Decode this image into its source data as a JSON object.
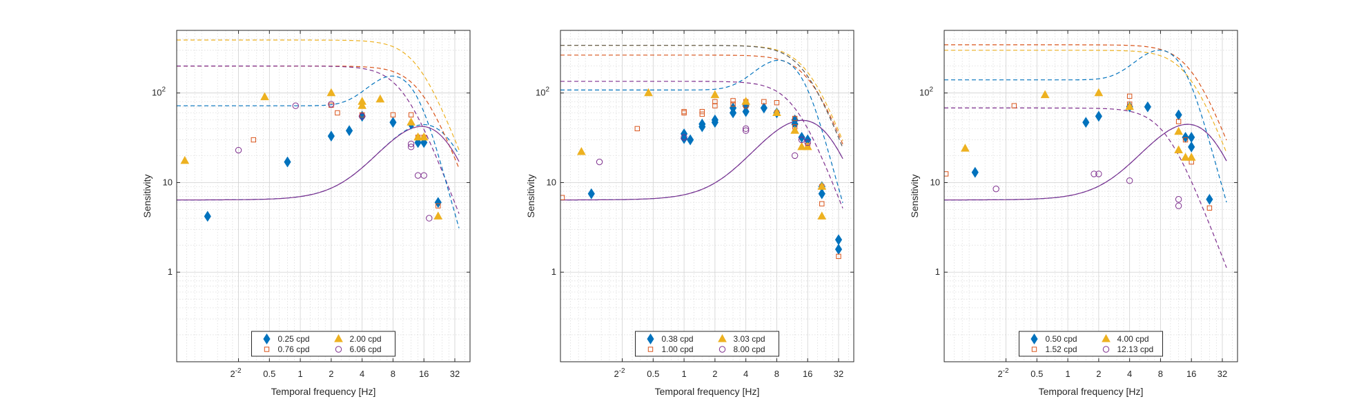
{
  "colors": {
    "blue": "#0072BD",
    "orange": "#D95319",
    "yellow": "#EDB120",
    "purple": "#7E2F8E",
    "grid": "#dcdcdc",
    "axis": "#262626"
  },
  "chart_data": [
    {
      "type": "scatter",
      "xscale": "log2",
      "yscale": "log10",
      "xlim": [
        0.0625,
        45
      ],
      "ylim": [
        0.1,
        500
      ],
      "xticks": [
        "2^-2",
        "0.5",
        "1",
        "2",
        "4",
        "8",
        "16",
        "32"
      ],
      "yticks": [
        "1",
        "10",
        "10^2"
      ],
      "xlabel": "Temporal frequency [Hz]",
      "ylabel": "Sensitivity",
      "legend": {
        "position": "bottom",
        "columns": 2
      },
      "series": [
        {
          "name": "0.25 cpd",
          "marker": "diamond",
          "color": "#0072BD",
          "points": [
            [
              0.125,
              4.2
            ],
            [
              0.75,
              17
            ],
            [
              2,
              33
            ],
            [
              3,
              38
            ],
            [
              4,
              55
            ],
            [
              8,
              47
            ],
            [
              12,
              45
            ],
            [
              14,
              28
            ],
            [
              16,
              28
            ],
            [
              22,
              6
            ]
          ],
          "model": "band",
          "model_params": {
            "base": 6.4,
            "peak": 62,
            "fp": 11,
            "cut": 26
          }
        },
        {
          "name": "0.76 cpd",
          "marker": "square",
          "color": "#D95319",
          "points": [
            [
              0.35,
              30
            ],
            [
              2,
              73
            ],
            [
              2.3,
              60
            ],
            [
              4,
              57
            ],
            [
              8,
              57
            ],
            [
              12,
              57
            ],
            [
              14,
              32
            ],
            [
              16,
              32
            ],
            [
              22,
              5.5
            ]
          ],
          "model": "flat",
          "model_params": {
            "plateau": 200,
            "fc": 15
          }
        },
        {
          "name": "2.00 cpd",
          "marker": "triangle",
          "color": "#EDB120",
          "points": [
            [
              0.075,
              17.5
            ],
            [
              0.45,
              90
            ],
            [
              2,
              100
            ],
            [
              4,
              80
            ],
            [
              4,
              72
            ],
            [
              6,
              85
            ],
            [
              12,
              47
            ],
            [
              14,
              32
            ],
            [
              16,
              32
            ],
            [
              22,
              4.2
            ]
          ],
          "model": "flat",
          "model_params": {
            "plateau": 390,
            "fc": 14
          }
        },
        {
          "name": "6.06 cpd",
          "marker": "circle",
          "color": "#7E2F8E",
          "points": [
            [
              0.25,
              23
            ],
            [
              0.9,
              72
            ],
            [
              2,
              75
            ],
            [
              4,
              55
            ],
            [
              12,
              27
            ],
            [
              12,
              25
            ],
            [
              14,
              12
            ],
            [
              16,
              12
            ],
            [
              18,
              4
            ]
          ],
          "model": "flat",
          "model_params": {
            "plateau": 200,
            "fc": 10
          }
        }
      ],
      "extra_curves": [
        {
          "color": "#0072BD",
          "style": "dashed",
          "model": "hump",
          "model_params": {
            "plateau": 72,
            "fc": 16
          }
        },
        {
          "color": "#7E2F8E",
          "style": "solid",
          "model": "band",
          "model_params": {
            "base": 6.4,
            "peak": 62,
            "fp": 11,
            "cut": 24
          }
        }
      ]
    },
    {
      "type": "scatter",
      "xscale": "log2",
      "yscale": "log10",
      "xlim": [
        0.0625,
        45
      ],
      "ylim": [
        0.1,
        500
      ],
      "xticks": [
        "2^-2",
        "0.5",
        "1",
        "2",
        "4",
        "8",
        "16",
        "32"
      ],
      "yticks": [
        "1",
        "10",
        "10^2"
      ],
      "xlabel": "Temporal frequency [Hz]",
      "ylabel": "Sensitivity",
      "legend": {
        "position": "bottom",
        "columns": 2
      },
      "series": [
        {
          "name": "0.38 cpd",
          "marker": "diamond",
          "color": "#0072BD",
          "points": [
            [
              0.125,
              7.5
            ],
            [
              1,
              35
            ],
            [
              1,
              31
            ],
            [
              1.15,
              30
            ],
            [
              1.5,
              45
            ],
            [
              1.5,
              42
            ],
            [
              2,
              50
            ],
            [
              2,
              47
            ],
            [
              3,
              68
            ],
            [
              3,
              60
            ],
            [
              4,
              72
            ],
            [
              4,
              62
            ],
            [
              6,
              68
            ],
            [
              8,
              60
            ],
            [
              12,
              50
            ],
            [
              12,
              45
            ],
            [
              14,
              32
            ],
            [
              16,
              30
            ],
            [
              22,
              9
            ],
            [
              22,
              7.5
            ],
            [
              32,
              2.3
            ],
            [
              32,
              1.8
            ]
          ],
          "model": "band",
          "model_params": {
            "base": 6.4,
            "peak": 65,
            "fp": 9,
            "cut": 24
          }
        },
        {
          "name": "1.00 cpd",
          "marker": "square",
          "color": "#D95319",
          "points": [
            [
              0.065,
              6.8
            ],
            [
              0.35,
              40
            ],
            [
              1,
              62
            ],
            [
              1,
              60
            ],
            [
              1.5,
              62
            ],
            [
              1.5,
              58
            ],
            [
              2,
              80
            ],
            [
              2,
              72
            ],
            [
              3,
              82
            ],
            [
              3,
              75
            ],
            [
              4,
              80
            ],
            [
              4,
              72
            ],
            [
              6,
              80
            ],
            [
              8,
              78
            ],
            [
              8,
              60
            ],
            [
              12,
              52
            ],
            [
              12,
              42
            ],
            [
              16,
              26
            ],
            [
              22,
              9
            ],
            [
              22,
              5.8
            ],
            [
              32,
              1.5
            ]
          ],
          "model": "flat",
          "model_params": {
            "plateau": 265,
            "fc": 17
          }
        },
        {
          "name": "3.03 cpd",
          "marker": "triangle",
          "color": "#EDB120",
          "points": [
            [
              0.1,
              22
            ],
            [
              0.45,
              100
            ],
            [
              2,
              95
            ],
            [
              4,
              80
            ],
            [
              8,
              60
            ],
            [
              12,
              38
            ],
            [
              14,
              25
            ],
            [
              16,
              25
            ],
            [
              22,
              4.2
            ],
            [
              22,
              9
            ]
          ],
          "model": "flat",
          "model_params": {
            "plateau": 340,
            "fc": 16
          }
        },
        {
          "name": "8.00 cpd",
          "marker": "circle",
          "color": "#7E2F8E",
          "points": [
            [
              0.15,
              17
            ],
            [
              1,
              32
            ],
            [
              4,
              40
            ],
            [
              4,
              38
            ],
            [
              12,
              20
            ],
            [
              14,
              30
            ],
            [
              16,
              28
            ]
          ],
          "model": "flat",
          "model_params": {
            "plateau": 135,
            "fc": 12
          }
        }
      ],
      "extra_curves": [
        {
          "color": "#0072BD",
          "style": "dashed",
          "model": "hump",
          "model_params": {
            "plateau": 108,
            "fc": 17
          }
        },
        {
          "color": "#7E2F8E",
          "style": "solid",
          "model": "band",
          "model_params": {
            "base": 6.4,
            "peak": 65,
            "fp": 9,
            "cut": 24
          }
        },
        {
          "color": "#555555",
          "style": "dashed",
          "model": "flat",
          "model_params": {
            "plateau": 340,
            "fc": 15
          }
        }
      ]
    },
    {
      "type": "scatter",
      "xscale": "log2",
      "yscale": "log10",
      "xlim": [
        0.0625,
        45
      ],
      "ylim": [
        0.1,
        500
      ],
      "xticks": [
        "2^-2",
        "0.5",
        "1",
        "2",
        "4",
        "8",
        "16",
        "32"
      ],
      "yticks": [
        "1",
        "10",
        "10^2"
      ],
      "xlabel": "Temporal frequency [Hz]",
      "ylabel": "Sensitivity",
      "legend": {
        "position": "bottom",
        "columns": 2
      },
      "series": [
        {
          "name": "0.50 cpd",
          "marker": "diamond",
          "color": "#0072BD",
          "points": [
            [
              0.125,
              13
            ],
            [
              1.5,
              47
            ],
            [
              2,
              55
            ],
            [
              4,
              70
            ],
            [
              6,
              70
            ],
            [
              12,
              57
            ],
            [
              14,
              32
            ],
            [
              16,
              32
            ],
            [
              16,
              25
            ],
            [
              24,
              6.5
            ]
          ],
          "model": "band",
          "model_params": {
            "base": 6.4,
            "peak": 62,
            "fp": 10,
            "cut": 24
          }
        },
        {
          "name": "1.52 cpd",
          "marker": "square",
          "color": "#D95319",
          "points": [
            [
              0.065,
              12.5
            ],
            [
              0.3,
              72
            ],
            [
              4,
              92
            ],
            [
              4,
              75
            ],
            [
              12,
              48
            ],
            [
              14,
              30
            ],
            [
              16,
              17
            ],
            [
              24,
              5.2
            ]
          ],
          "model": "flat",
          "model_params": {
            "plateau": 345,
            "fc": 16
          }
        },
        {
          "name": "4.00 cpd",
          "marker": "triangle",
          "color": "#EDB120",
          "points": [
            [
              0.1,
              24
            ],
            [
              0.6,
              95
            ],
            [
              2,
              100
            ],
            [
              4,
              70
            ],
            [
              12,
              37
            ],
            [
              12,
              23
            ],
            [
              14,
              19
            ],
            [
              16,
              19
            ]
          ],
          "model": "flat",
          "model_params": {
            "plateau": 300,
            "fc": 15
          }
        },
        {
          "name": "12.13 cpd",
          "marker": "circle",
          "color": "#7E2F8E",
          "points": [
            [
              0.2,
              8.5
            ],
            [
              1.8,
              12.5
            ],
            [
              2,
              12.5
            ],
            [
              4,
              10.5
            ],
            [
              12,
              6.5
            ],
            [
              12,
              5.5
            ]
          ],
          "model": "flat",
          "model_params": {
            "plateau": 68,
            "fc": 9
          }
        }
      ],
      "extra_curves": [
        {
          "color": "#0072BD",
          "style": "dashed",
          "model": "hump",
          "model_params": {
            "plateau": 140,
            "fc": 16
          }
        },
        {
          "color": "#7E2F8E",
          "style": "solid",
          "model": "band",
          "model_params": {
            "base": 6.4,
            "peak": 62,
            "fp": 10,
            "cut": 24
          }
        }
      ]
    }
  ]
}
